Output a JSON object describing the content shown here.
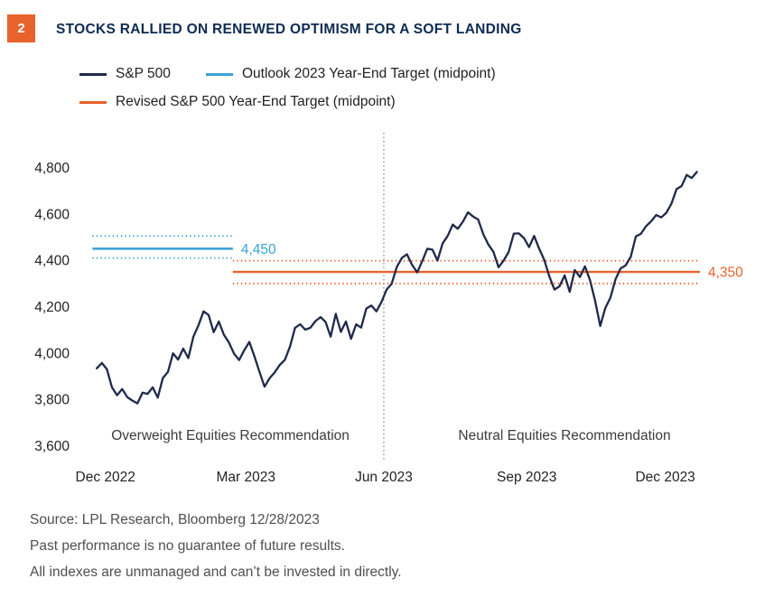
{
  "badge": {
    "number": "2"
  },
  "title": "STOCKS RALLIED ON RENEWED OPTIMISM FOR A SOFT LANDING",
  "legend": [
    {
      "label": "S&P 500",
      "color": "#1F2A49",
      "name": "legend-item-sp500"
    },
    {
      "label": "Outlook 2023 Year-End Target (midpoint)",
      "color": "#38A1D8",
      "name": "legend-item-outlook-target"
    },
    {
      "label": "Revised S&P 500 Year-End Target (midpoint)",
      "color": "#E8622B",
      "name": "legend-item-revised-target"
    }
  ],
  "chart_data": {
    "type": "line",
    "title": "Stocks Rallied on Renewed Optimism for a Soft Landing",
    "xlabel": "",
    "ylabel": "",
    "y_ticks": [
      3600,
      3800,
      4000,
      4200,
      4400,
      4600,
      4800
    ],
    "y_domain": [
      3540,
      4950
    ],
    "x_ticks": [
      {
        "label": "Dec 2022",
        "f": 0.039
      },
      {
        "label": "Mar 2023",
        "f": 0.266
      },
      {
        "label": "Jun 2023",
        "f": 0.489
      },
      {
        "label": "Sep 2023",
        "f": 0.72
      },
      {
        "label": "Dec 2023",
        "f": 0.944
      }
    ],
    "series": [
      {
        "name": "S&P 500",
        "color": "#1F2A49",
        "values": [
          3934,
          3957,
          3930,
          3852,
          3818,
          3845,
          3810,
          3795,
          3783,
          3829,
          3824,
          3852,
          3808,
          3892,
          3919,
          3999,
          3972,
          4019,
          3978,
          4070,
          4119,
          4180,
          4164,
          4090,
          4136,
          4079,
          4045,
          3997,
          3970,
          4012,
          4048,
          3986,
          3919,
          3855,
          3892,
          3917,
          3949,
          3971,
          4028,
          4109,
          4124,
          4101,
          4109,
          4138,
          4155,
          4134,
          4071,
          4169,
          4091,
          4136,
          4061,
          4124,
          4110,
          4192,
          4205,
          4180,
          4221,
          4274,
          4299,
          4372,
          4410,
          4426,
          4381,
          4348,
          4396,
          4450,
          4446,
          4399,
          4472,
          4505,
          4554,
          4536,
          4567,
          4607,
          4589,
          4576,
          4513,
          4468,
          4437,
          4370,
          4399,
          4436,
          4515,
          4516,
          4496,
          4457,
          4505,
          4450,
          4402,
          4330,
          4274,
          4288,
          4335,
          4264,
          4358,
          4328,
          4374,
          4314,
          4224,
          4117,
          4194,
          4238,
          4318,
          4365,
          4378,
          4415,
          4503,
          4514,
          4547,
          4568,
          4595,
          4585,
          4605,
          4644,
          4707,
          4720,
          4768,
          4755,
          4781
        ]
      }
    ],
    "targets": [
      {
        "name": "Outlook 2023 Year-End Target (midpoint)",
        "midpoint": 4450,
        "band": [
          4410,
          4505
        ],
        "label": "4,450",
        "color": "#38A1D8",
        "x_span": [
          0.018,
          0.245
        ]
      },
      {
        "name": "Revised S&P 500 Year-End Target (midpoint)",
        "midpoint": 4350,
        "band": [
          4300,
          4398
        ],
        "label": "4,350",
        "color": "#E8622B",
        "x_span": [
          0.245,
          1.0
        ]
      }
    ],
    "divider": {
      "f": 0.489,
      "color": "#777777",
      "style": "dotted"
    },
    "annotations": [
      {
        "text": "Overweight Equities Recommendation",
        "f": 0.241,
        "value": 3625
      },
      {
        "text": "Neutral Equities Recommendation",
        "f": 0.781,
        "value": 3625
      }
    ],
    "legend_position": "top",
    "grid": false
  },
  "footer": {
    "lines": [
      "Source: LPL Research, Bloomberg 12/28/2023",
      "Past performance is no guarantee of future results.",
      "All indexes are unmanaged and can’t be invested in directly."
    ]
  }
}
